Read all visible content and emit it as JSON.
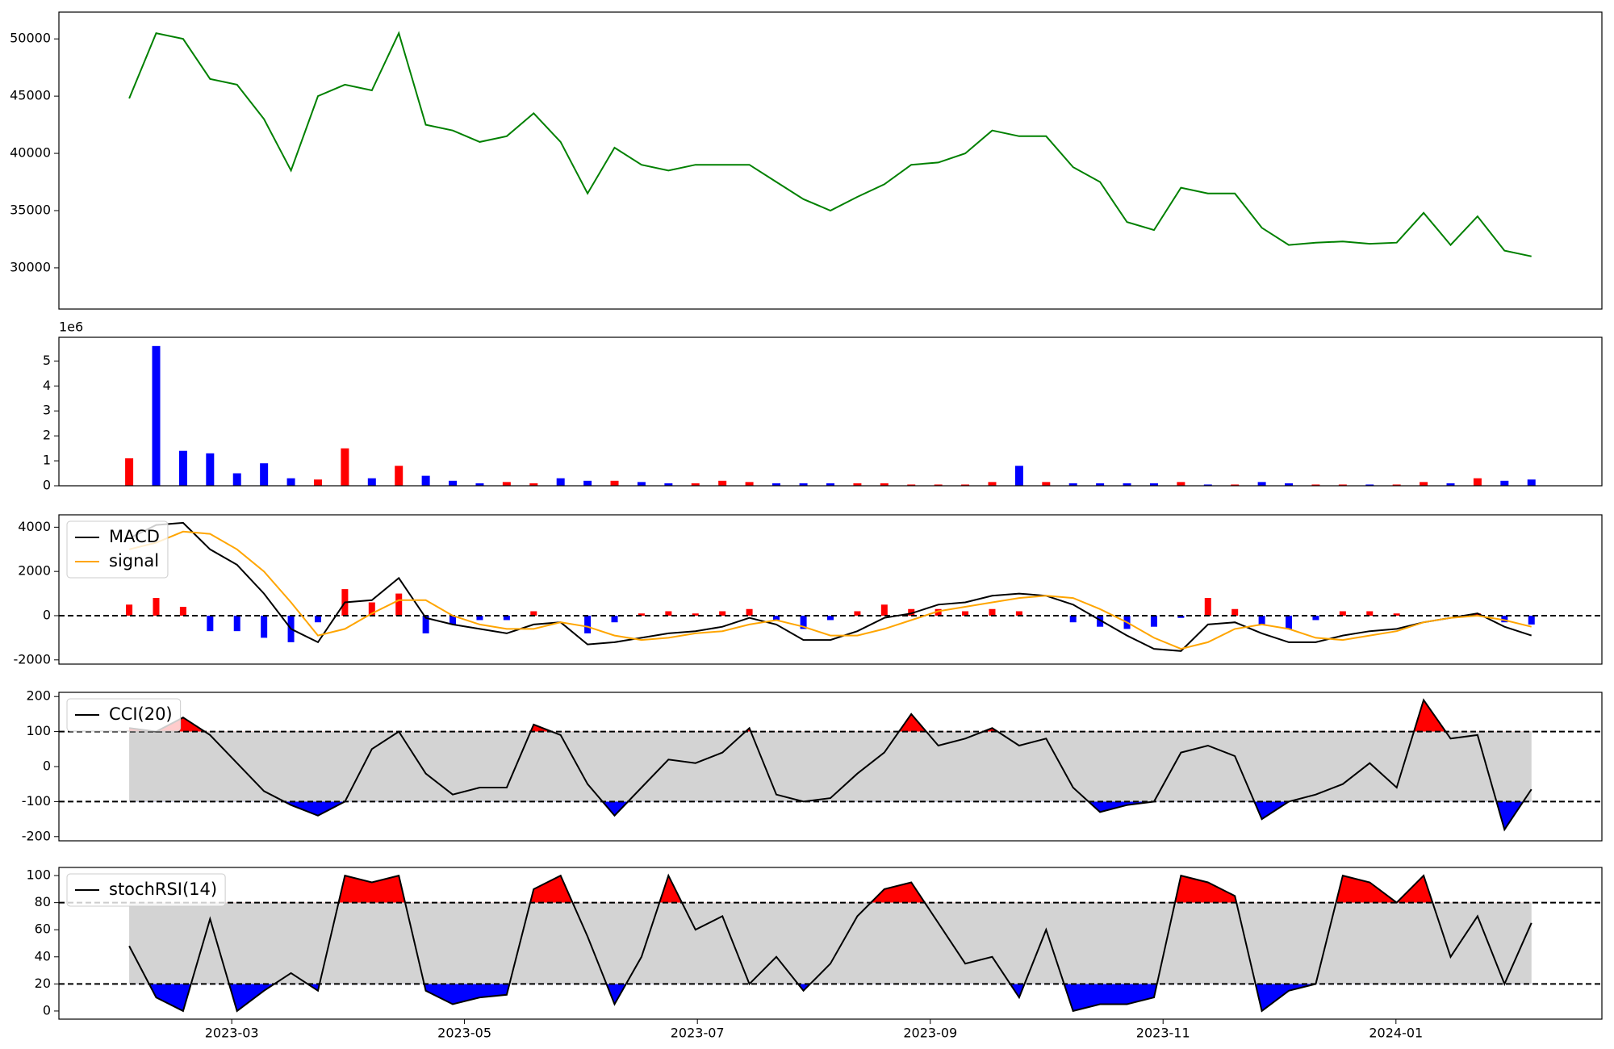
{
  "chart_data": [
    {
      "type": "line",
      "color": "green",
      "x": [
        2023.0933,
        2023.1126,
        2023.1319,
        2023.1512,
        2023.1705,
        2023.1898,
        2023.2091,
        2023.2284,
        2023.2477,
        2023.267,
        2023.2863,
        2023.3056,
        2023.3249,
        2023.3442,
        2023.3635,
        2023.3828,
        2023.4021,
        2023.4214,
        2023.4407,
        2023.46,
        2023.4793,
        2023.4986,
        2023.5179,
        2023.5372,
        2023.5565,
        2023.5759,
        2023.5952,
        2023.6145,
        2023.6338,
        2023.6531,
        2023.6724,
        2023.6917,
        2023.711,
        2023.7303,
        2023.7496,
        2023.7689,
        2023.7882,
        2023.8075,
        2023.8268,
        2023.8461,
        2023.8654,
        2023.8847,
        2023.904,
        2023.9233,
        2023.9426,
        2023.9619,
        2023.9812,
        2024.0005,
        2024.0198,
        2024.0391,
        2024.0584,
        2024.0777,
        2024.097
      ],
      "values": [
        44800,
        50500,
        50000,
        46500,
        46000,
        43000,
        38500,
        45000,
        46000,
        45500,
        50500,
        42500,
        42000,
        41000,
        41500,
        43500,
        41000,
        36500,
        40500,
        39000,
        38500,
        39000,
        39000,
        39000,
        37500,
        36000,
        35000,
        36200,
        37300,
        39000,
        39200,
        40000,
        42000,
        41500,
        41500,
        38800,
        37500,
        34000,
        33300,
        37000,
        36500,
        36500,
        33500,
        32000,
        32200,
        32300,
        32100,
        32200,
        34800,
        32000,
        34500,
        31500,
        31000
      ],
      "xlim": [
        2023.043,
        2024.1474
      ],
      "ylim": [
        26400,
        52340
      ],
      "yticks": [
        30000,
        35000,
        40000,
        45000,
        50000
      ]
    },
    {
      "type": "bar",
      "offset_label": "1e6",
      "x": [
        2023.0933,
        2023.1126,
        2023.1319,
        2023.1512,
        2023.1705,
        2023.1898,
        2023.2091,
        2023.2284,
        2023.2477,
        2023.267,
        2023.2863,
        2023.3056,
        2023.3249,
        2023.3442,
        2023.3635,
        2023.3828,
        2023.4021,
        2023.4214,
        2023.4407,
        2023.46,
        2023.4793,
        2023.4986,
        2023.5179,
        2023.5372,
        2023.5565,
        2023.5759,
        2023.5952,
        2023.6145,
        2023.6338,
        2023.6531,
        2023.6724,
        2023.6917,
        2023.711,
        2023.7303,
        2023.7496,
        2023.7689,
        2023.7882,
        2023.8075,
        2023.8268,
        2023.8461,
        2023.8654,
        2023.8847,
        2023.904,
        2023.9233,
        2023.9426,
        2023.9619,
        2023.9812,
        2024.0005,
        2024.0198,
        2024.0391,
        2024.0584,
        2024.0777,
        2024.097
      ],
      "values": [
        1100000,
        5600000,
        1400000,
        1300000,
        500000,
        900000,
        300000,
        250000,
        1500000,
        300000,
        800000,
        400000,
        200000,
        100000,
        150000,
        100000,
        300000,
        200000,
        200000,
        150000,
        100000,
        100000,
        200000,
        150000,
        100000,
        100000,
        100000,
        100000,
        100000,
        50000,
        50000,
        50000,
        150000,
        800000,
        150000,
        100000,
        100000,
        100000,
        100000,
        150000,
        50000,
        50000,
        150000,
        100000,
        50000,
        50000,
        50000,
        50000,
        150000,
        100000,
        300000,
        200000,
        250000
      ],
      "colors": [
        "red",
        "blue",
        "blue",
        "blue",
        "blue",
        "blue",
        "blue",
        "red",
        "red",
        "blue",
        "red",
        "blue",
        "blue",
        "blue",
        "red",
        "red",
        "blue",
        "blue",
        "red",
        "blue",
        "blue",
        "red",
        "red",
        "red",
        "blue",
        "blue",
        "blue",
        "red",
        "red",
        "red",
        "red",
        "red",
        "red",
        "blue",
        "red",
        "blue",
        "blue",
        "blue",
        "blue",
        "red",
        "blue",
        "red",
        "blue",
        "blue",
        "red",
        "red",
        "blue",
        "red",
        "red",
        "blue",
        "red",
        "blue",
        "blue"
      ],
      "xlim": [
        2023.043,
        2024.1474
      ],
      "ylim": [
        0,
        5950000
      ],
      "yticks": [
        0,
        {
          "value": 1000000,
          "label": "1"
        },
        {
          "value": 2000000,
          "label": "2"
        },
        {
          "value": 3000000,
          "label": "3"
        },
        {
          "value": 4000000,
          "label": "4"
        },
        {
          "value": 5000000,
          "label": "5"
        }
      ]
    },
    {
      "type": "line",
      "legend": "upper left",
      "x": [
        2023.0933,
        2023.1126,
        2023.1319,
        2023.1512,
        2023.1705,
        2023.1898,
        2023.2091,
        2023.2284,
        2023.2477,
        2023.267,
        2023.2863,
        2023.3056,
        2023.3249,
        2023.3442,
        2023.3635,
        2023.3828,
        2023.4021,
        2023.4214,
        2023.4407,
        2023.46,
        2023.4793,
        2023.4986,
        2023.5179,
        2023.5372,
        2023.5565,
        2023.5759,
        2023.5952,
        2023.6145,
        2023.6338,
        2023.6531,
        2023.6724,
        2023.6917,
        2023.711,
        2023.7303,
        2023.7496,
        2023.7689,
        2023.7882,
        2023.8075,
        2023.8268,
        2023.8461,
        2023.8654,
        2023.8847,
        2023.904,
        2023.9233,
        2023.9426,
        2023.9619,
        2023.9812,
        2024.0005,
        2024.0198,
        2024.0391,
        2024.0584,
        2024.0777,
        2024.097
      ],
      "series": [
        {
          "name": "MACD",
          "color": "black",
          "values": [
            3500,
            4100,
            4200,
            3000,
            2300,
            1000,
            -600,
            -1200,
            600,
            700,
            1700,
            -100,
            -400,
            -600,
            -800,
            -400,
            -300,
            -1300,
            -1200,
            -1000,
            -800,
            -700,
            -500,
            -100,
            -400,
            -1100,
            -1100,
            -700,
            -100,
            100,
            500,
            600,
            900,
            1000,
            900,
            500,
            -200,
            -900,
            -1500,
            -1600,
            -400,
            -300,
            -800,
            -1200,
            -1200,
            -900,
            -700,
            -600,
            -300,
            -100,
            100,
            -500,
            -900
          ]
        },
        {
          "name": "signal",
          "color": "orange",
          "values": [
            3000,
            3300,
            3800,
            3700,
            3000,
            2000,
            600,
            -900,
            -600,
            100,
            700,
            700,
            0,
            -400,
            -600,
            -600,
            -300,
            -500,
            -900,
            -1100,
            -1000,
            -800,
            -700,
            -400,
            -200,
            -500,
            -900,
            -900,
            -600,
            -200,
            200,
            400,
            600,
            800,
            900,
            800,
            300,
            -300,
            -1000,
            -1500,
            -1200,
            -600,
            -400,
            -600,
            -1000,
            -1100,
            -900,
            -700,
            -300,
            -100,
            0,
            -200,
            -500
          ]
        }
      ],
      "histogram": {
        "positive_color": "red",
        "negative_color": "blue",
        "values": [
          500,
          800,
          400,
          -700,
          -700,
          -1000,
          -1200,
          -300,
          1200,
          600,
          1000,
          -800,
          -400,
          -200,
          -200,
          200,
          0,
          -800,
          -300,
          100,
          200,
          100,
          200,
          300,
          -200,
          -600,
          -200,
          200,
          500,
          300,
          300,
          200,
          300,
          200,
          0,
          -300,
          -500,
          -600,
          -500,
          -100,
          800,
          300,
          -400,
          -600,
          -200,
          200,
          200,
          100,
          0,
          0,
          100,
          -300,
          -400
        ]
      },
      "hlines": [
        0
      ],
      "xlim": [
        2023.043,
        2024.1474
      ],
      "ylim": [
        -2190,
        4560
      ],
      "yticks": [
        -2000,
        0,
        2000,
        4000
      ]
    },
    {
      "type": "line",
      "legend": "upper left",
      "band_color": "lightgray",
      "above_color": "red",
      "below_color": "blue",
      "x": [
        2023.0933,
        2023.1126,
        2023.1319,
        2023.1512,
        2023.1705,
        2023.1898,
        2023.2091,
        2023.2284,
        2023.2477,
        2023.267,
        2023.2863,
        2023.3056,
        2023.3249,
        2023.3442,
        2023.3635,
        2023.3828,
        2023.4021,
        2023.4214,
        2023.4407,
        2023.46,
        2023.4793,
        2023.4986,
        2023.5179,
        2023.5372,
        2023.5565,
        2023.5759,
        2023.5952,
        2023.6145,
        2023.6338,
        2023.6531,
        2023.6724,
        2023.6917,
        2023.711,
        2023.7303,
        2023.7496,
        2023.7689,
        2023.7882,
        2023.8075,
        2023.8268,
        2023.8461,
        2023.8654,
        2023.8847,
        2023.904,
        2023.9233,
        2023.9426,
        2023.9619,
        2023.9812,
        2024.0005,
        2024.0198,
        2024.0391,
        2024.0584,
        2024.0777,
        2024.097
      ],
      "series": [
        {
          "name": "CCI(20)",
          "color": "black",
          "values": [
            110,
            100,
            140,
            90,
            10,
            -70,
            -110,
            -140,
            -100,
            50,
            100,
            -20,
            -80,
            -60,
            -60,
            120,
            90,
            -50,
            -140,
            -60,
            20,
            10,
            40,
            110,
            -80,
            -100,
            -90,
            -20,
            40,
            150,
            60,
            80,
            110,
            60,
            80,
            -60,
            -130,
            -110,
            -100,
            40,
            60,
            30,
            -150,
            -100,
            -80,
            -50,
            10,
            -60,
            190,
            80,
            90,
            -180,
            -65
          ]
        }
      ],
      "hlines": [
        100,
        -100
      ],
      "xlim": [
        2023.043,
        2024.1474
      ],
      "ylim": [
        -212,
        212
      ],
      "yticks": [
        -200,
        -100,
        0,
        100,
        200
      ]
    },
    {
      "type": "line",
      "legend": "upper left",
      "band_color": "lightgray",
      "above_color": "red",
      "below_color": "blue",
      "x": [
        2023.0933,
        2023.1126,
        2023.1319,
        2023.1512,
        2023.1705,
        2023.1898,
        2023.2091,
        2023.2284,
        2023.2477,
        2023.267,
        2023.2863,
        2023.3056,
        2023.3249,
        2023.3442,
        2023.3635,
        2023.3828,
        2023.4021,
        2023.4214,
        2023.4407,
        2023.46,
        2023.4793,
        2023.4986,
        2023.5179,
        2023.5372,
        2023.5565,
        2023.5759,
        2023.5952,
        2023.6145,
        2023.6338,
        2023.6531,
        2023.6724,
        2023.6917,
        2023.711,
        2023.7303,
        2023.7496,
        2023.7689,
        2023.7882,
        2023.8075,
        2023.8268,
        2023.8461,
        2023.8654,
        2023.8847,
        2023.904,
        2023.9233,
        2023.9426,
        2023.9619,
        2023.9812,
        2024.0005,
        2024.0198,
        2024.0391,
        2024.0584,
        2024.0777,
        2024.097
      ],
      "series": [
        {
          "name": "stochRSI(14)",
          "color": "black",
          "values": [
            48,
            10,
            0,
            68,
            0,
            15,
            28,
            15,
            100,
            95,
            100,
            15,
            5,
            10,
            12,
            90,
            100,
            55,
            5,
            40,
            100,
            60,
            70,
            20,
            40,
            15,
            35,
            70,
            90,
            95,
            65,
            35,
            40,
            10,
            60,
            0,
            5,
            5,
            10,
            100,
            95,
            85,
            0,
            15,
            20,
            100,
            95,
            80,
            100,
            40,
            70,
            20,
            65
          ]
        }
      ],
      "hlines": [
        80,
        20
      ],
      "xlim": [
        2023.043,
        2024.1474
      ],
      "ylim": [
        -6,
        106
      ],
      "yticks": [
        0,
        20,
        40,
        60,
        80,
        100
      ],
      "xticks": [
        {
          "value": 2023.1667,
          "label": "2023-03"
        },
        {
          "value": 2023.3333,
          "label": "2023-05"
        },
        {
          "value": 2023.5,
          "label": "2023-07"
        },
        {
          "value": 2023.6667,
          "label": "2023-09"
        },
        {
          "value": 2023.8333,
          "label": "2023-11"
        },
        {
          "value": 2024.0,
          "label": "2024-01"
        }
      ]
    }
  ]
}
